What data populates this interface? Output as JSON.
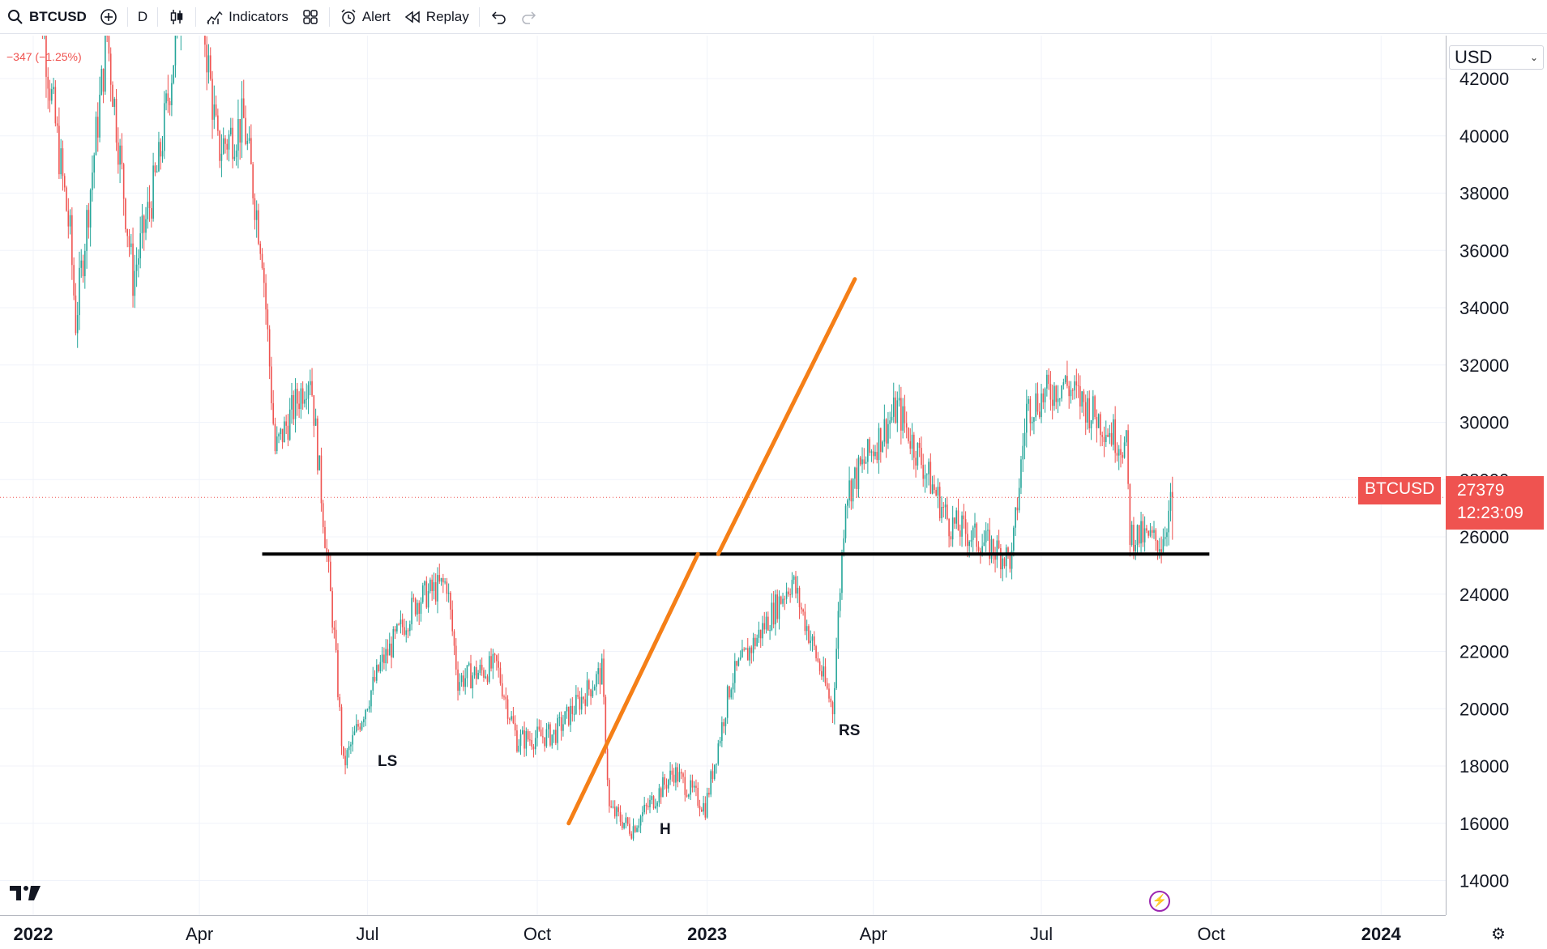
{
  "toolbar": {
    "symbol": "BTCUSD",
    "interval": "D",
    "indicators_label": "Indicators",
    "alert_label": "Alert",
    "replay_label": "Replay"
  },
  "chart": {
    "change_text": "−347 (−1.25%)",
    "currency": "USD",
    "symbol_tag": "BTCUSD",
    "last_price": "27379",
    "countdown": "12:23:09",
    "labels": {
      "ls": "LS",
      "h": "H",
      "rs": "RS"
    }
  },
  "colors": {
    "up": "#26a69a",
    "down": "#ef5350",
    "neckline": "#000000",
    "trendline": "#f57f17",
    "price_tag": "#ef5350"
  },
  "chart_data": {
    "type": "candlestick",
    "title": "",
    "price_ticks": [
      42000,
      40000,
      38000,
      36000,
      34000,
      32000,
      30000,
      28000,
      26000,
      24000,
      22000,
      20000,
      18000,
      16000,
      14000
    ],
    "time_ticks": [
      "2022",
      "Apr",
      "Jul",
      "Oct",
      "2023",
      "Apr",
      "Jul",
      "Oct",
      "2024"
    ],
    "close_path": [
      [
        "2022-01-01",
        46800
      ],
      [
        "2022-01-10",
        41800
      ],
      [
        "2022-01-21",
        36500
      ],
      [
        "2022-01-24",
        33500
      ],
      [
        "2022-02-10",
        43500
      ],
      [
        "2022-02-24",
        35000
      ],
      [
        "2022-03-10",
        39000
      ],
      [
        "2022-03-28",
        47500
      ],
      [
        "2022-04-11",
        39500
      ],
      [
        "2022-04-25",
        40500
      ],
      [
        "2022-05-05",
        36000
      ],
      [
        "2022-05-12",
        29000
      ],
      [
        "2022-05-31",
        31800
      ],
      [
        "2022-06-13",
        22500
      ],
      [
        "2022-06-18",
        18000
      ],
      [
        "2022-07-08",
        21500
      ],
      [
        "2022-07-28",
        23800
      ],
      [
        "2022-08-13",
        24400
      ],
      [
        "2022-08-19",
        21000
      ],
      [
        "2022-09-09",
        21500
      ],
      [
        "2022-09-20",
        18900
      ],
      [
        "2022-10-10",
        19100
      ],
      [
        "2022-11-05",
        21300
      ],
      [
        "2022-11-09",
        16500
      ],
      [
        "2022-11-21",
        15800
      ],
      [
        "2022-12-14",
        17800
      ],
      [
        "2022-12-31",
        16550
      ],
      [
        "2023-01-14",
        21000
      ],
      [
        "2023-02-16",
        24500
      ],
      [
        "2023-03-10",
        20000
      ],
      [
        "2023-03-17",
        27500
      ],
      [
        "2023-04-14",
        30500
      ],
      [
        "2023-05-12",
        26500
      ],
      [
        "2023-06-15",
        25200
      ],
      [
        "2023-06-23",
        30500
      ],
      [
        "2023-07-13",
        31400
      ],
      [
        "2023-08-16",
        29100
      ],
      [
        "2023-08-18",
        26100
      ],
      [
        "2023-09-04",
        25800
      ],
      [
        "2023-09-10",
        27379
      ]
    ],
    "annotations": {
      "neckline_price": 25400,
      "neckline_from": "2022-05-05",
      "neckline_to": "2023-09-30",
      "trendline_1": [
        [
          "2022-10-18",
          16000
        ],
        [
          "2022-12-27",
          25400
        ]
      ],
      "trendline_2": [
        [
          "2023-01-07",
          25400
        ],
        [
          "2023-03-22",
          35000
        ]
      ],
      "pattern_points": [
        {
          "name": "LS",
          "date": "2022-06-18",
          "price": 17600
        },
        {
          "name": "H",
          "date": "2022-11-21",
          "price": 15500
        },
        {
          "name": "RS",
          "date": "2023-03-10",
          "price": 19600
        }
      ]
    },
    "ylim": [
      12800,
      43500
    ],
    "xlim": [
      "2021-12-14",
      "2024-02-05"
    ],
    "grid": true,
    "price_line": 27379
  }
}
